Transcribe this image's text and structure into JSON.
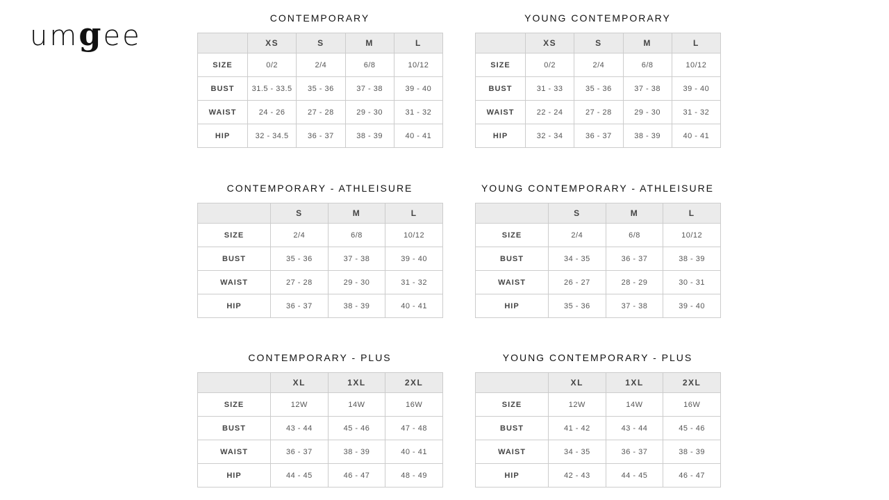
{
  "logo": {
    "pre": "um",
    "g": "g",
    "post": "ee"
  },
  "charts": [
    {
      "title": "CONTEMPORARY",
      "sizes": [
        "XS",
        "S",
        "M",
        "L"
      ],
      "rows": [
        {
          "label": "SIZE",
          "values": [
            "0/2",
            "2/4",
            "6/8",
            "10/12"
          ]
        },
        {
          "label": "BUST",
          "values": [
            "31.5 - 33.5",
            "35 - 36",
            "37 - 38",
            "39 - 40"
          ]
        },
        {
          "label": "WAIST",
          "values": [
            "24 - 26",
            "27 - 28",
            "29 - 30",
            "31 - 32"
          ]
        },
        {
          "label": "HIP",
          "values": [
            "32 - 34.5",
            "36 - 37",
            "38 - 39",
            "40 - 41"
          ]
        }
      ]
    },
    {
      "title": "YOUNG CONTEMPORARY",
      "sizes": [
        "XS",
        "S",
        "M",
        "L"
      ],
      "rows": [
        {
          "label": "SIZE",
          "values": [
            "0/2",
            "2/4",
            "6/8",
            "10/12"
          ]
        },
        {
          "label": "BUST",
          "values": [
            "31 - 33",
            "35 - 36",
            "37 - 38",
            "39 - 40"
          ]
        },
        {
          "label": "WAIST",
          "values": [
            "22 - 24",
            "27 - 28",
            "29 - 30",
            "31 - 32"
          ]
        },
        {
          "label": "HIP",
          "values": [
            "32 - 34",
            "36 - 37",
            "38 - 39",
            "40 - 41"
          ]
        }
      ]
    },
    {
      "title": "CONTEMPORARY - ATHLEISURE",
      "sizes": [
        "S",
        "M",
        "L"
      ],
      "rows": [
        {
          "label": "SIZE",
          "values": [
            "2/4",
            "6/8",
            "10/12"
          ]
        },
        {
          "label": "BUST",
          "values": [
            "35 - 36",
            "37 - 38",
            "39 - 40"
          ]
        },
        {
          "label": "WAIST",
          "values": [
            "27 - 28",
            "29 - 30",
            "31 - 32"
          ]
        },
        {
          "label": "HIP",
          "values": [
            "36 - 37",
            "38 - 39",
            "40 - 41"
          ]
        }
      ]
    },
    {
      "title": "YOUNG CONTEMPORARY - ATHLEISURE",
      "sizes": [
        "S",
        "M",
        "L"
      ],
      "rows": [
        {
          "label": "SIZE",
          "values": [
            "2/4",
            "6/8",
            "10/12"
          ]
        },
        {
          "label": "BUST",
          "values": [
            "34 - 35",
            "36 - 37",
            "38 - 39"
          ]
        },
        {
          "label": "WAIST",
          "values": [
            "26 - 27",
            "28 - 29",
            "30 - 31"
          ]
        },
        {
          "label": "HIP",
          "values": [
            "35 - 36",
            "37 - 38",
            "39 - 40"
          ]
        }
      ]
    },
    {
      "title": "CONTEMPORARY - PLUS",
      "sizes": [
        "XL",
        "1XL",
        "2XL"
      ],
      "rows": [
        {
          "label": "SIZE",
          "values": [
            "12W",
            "14W",
            "16W"
          ]
        },
        {
          "label": "BUST",
          "values": [
            "43 - 44",
            "45 - 46",
            "47 - 48"
          ]
        },
        {
          "label": "WAIST",
          "values": [
            "36 - 37",
            "38 - 39",
            "40 - 41"
          ]
        },
        {
          "label": "HIP",
          "values": [
            "44 - 45",
            "46 - 47",
            "48 - 49"
          ]
        }
      ]
    },
    {
      "title": "YOUNG CONTEMPORARY - PLUS",
      "sizes": [
        "XL",
        "1XL",
        "2XL"
      ],
      "rows": [
        {
          "label": "SIZE",
          "values": [
            "12W",
            "14W",
            "16W"
          ]
        },
        {
          "label": "BUST",
          "values": [
            "41 - 42",
            "43 - 44",
            "45 - 46"
          ]
        },
        {
          "label": "WAIST",
          "values": [
            "34 - 35",
            "36 - 37",
            "38 - 39"
          ]
        },
        {
          "label": "HIP",
          "values": [
            "42 - 43",
            "44 - 45",
            "46 - 47"
          ]
        }
      ]
    }
  ]
}
